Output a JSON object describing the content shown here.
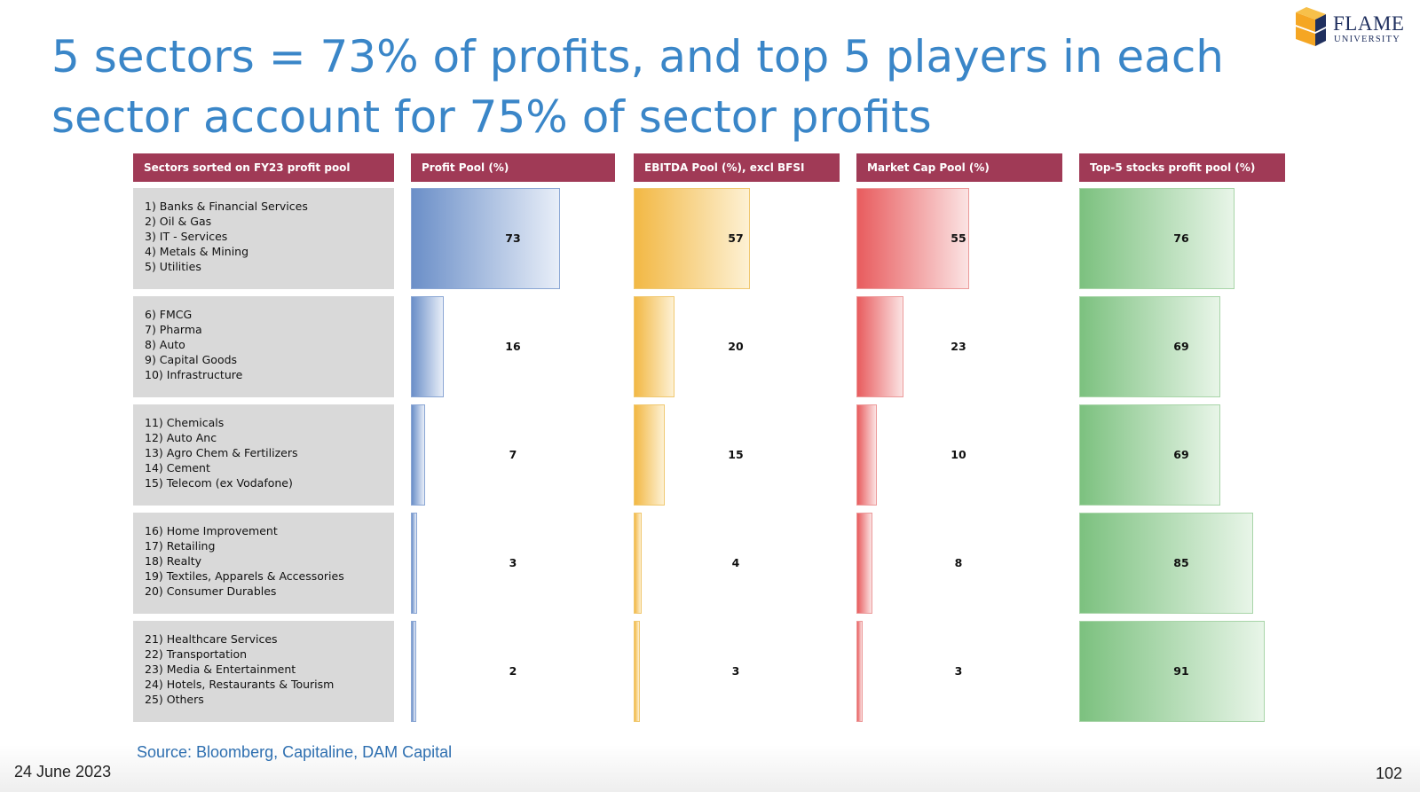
{
  "slide": {
    "title": "5 sectors = 73% of profits, and top 5 players in each sector account for 75% of sector profits",
    "source": "Source: Bloomberg, Capitaline, DAM Capital",
    "date": "24 June 2023",
    "page_number": "102"
  },
  "logo": {
    "name": "FLAME",
    "subtitle": "UNIVERSITY",
    "colors": [
      "#f5a623",
      "#1f2f5e"
    ]
  },
  "colors": {
    "header": "#a03a56",
    "title": "#3a86c8",
    "profit": "#6b8fc8",
    "ebitda": "#f2b844",
    "market_cap": "#e85c5e",
    "top5": "#7cc17f"
  },
  "chart_data": {
    "type": "bar",
    "orientation": "horizontal",
    "categories": [
      [
        "1) Banks & Financial Services",
        "2) Oil & Gas",
        "3) IT - Services",
        "4) Metals & Mining",
        "5) Utilities"
      ],
      [
        "6) FMCG",
        "7) Pharma",
        "8) Auto",
        "9) Capital Goods",
        "10) Infrastructure"
      ],
      [
        "11) Chemicals",
        "12) Auto Anc",
        "13) Agro Chem & Fertilizers",
        "14) Cement",
        "15) Telecom (ex Vodafone)"
      ],
      [
        "16) Home Improvement",
        "17) Retailing",
        "18) Realty",
        "19) Textiles, Apparels & Accessories",
        "20) Consumer Durables"
      ],
      [
        "21) Healthcare Services",
        "22) Transportation",
        "23) Media & Entertainment",
        "24) Hotels, Restaurants & Tourism",
        "25) Others"
      ]
    ],
    "category_header": "Sectors sorted on FY23 profit pool",
    "series": [
      {
        "name": "Profit Pool (%)",
        "values": [
          73,
          16,
          7,
          3,
          2
        ],
        "max": 100,
        "color": "#6b8fc8"
      },
      {
        "name": "EBITDA Pool (%), excl BFSI",
        "values": [
          57,
          20,
          15,
          4,
          3
        ],
        "max": 100,
        "color": "#f2b844"
      },
      {
        "name": "Market Cap Pool (%)",
        "values": [
          55,
          23,
          10,
          8,
          3
        ],
        "max": 100,
        "color": "#e85c5e"
      },
      {
        "name": "Top-5 stocks profit pool (%)",
        "values": [
          76,
          69,
          69,
          85,
          91
        ],
        "max": 100,
        "color": "#7cc17f"
      }
    ]
  }
}
